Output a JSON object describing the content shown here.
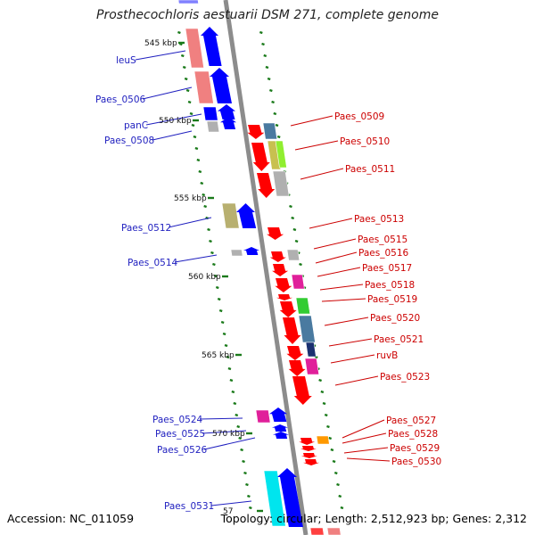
{
  "title": "Prosthecochloris aestuarii DSM 271, complete genome",
  "footer": {
    "accession": "Accession: NC_011059",
    "topology": "Topology: circular; Length: 2,512,923 bp; Genes: 2,312"
  },
  "ticks": [
    {
      "label": "545 kbp"
    },
    {
      "label": "550 kbp"
    },
    {
      "label": "555 kbp"
    },
    {
      "label": "560 kbp"
    },
    {
      "label": "565 kbp"
    },
    {
      "label": "570 kbp"
    },
    {
      "label": "57"
    }
  ],
  "left_genes": [
    {
      "name": "leuS"
    },
    {
      "name": "Paes_0506"
    },
    {
      "name": "panC"
    },
    {
      "name": "Paes_0508"
    },
    {
      "name": "Paes_0512"
    },
    {
      "name": "Paes_0514"
    },
    {
      "name": "Paes_0524"
    },
    {
      "name": "Paes_0525"
    },
    {
      "name": "Paes_0526"
    },
    {
      "name": "Paes_0531"
    }
  ],
  "right_genes": [
    {
      "name": "Paes_0509"
    },
    {
      "name": "Paes_0510"
    },
    {
      "name": "Paes_0511"
    },
    {
      "name": "Paes_0513"
    },
    {
      "name": "Paes_0515"
    },
    {
      "name": "Paes_0516"
    },
    {
      "name": "Paes_0517"
    },
    {
      "name": "Paes_0518"
    },
    {
      "name": "Paes_0519"
    },
    {
      "name": "Paes_0520"
    },
    {
      "name": "Paes_0521"
    },
    {
      "name": "ruvB"
    },
    {
      "name": "Paes_0523"
    },
    {
      "name": "Paes_0527"
    },
    {
      "name": "Paes_0528"
    },
    {
      "name": "Paes_0529"
    },
    {
      "name": "Paes_0530"
    }
  ],
  "colors": {
    "forward_label": "#1f1fbf",
    "reverse_label": "#cc0000",
    "forward_arrow": "#0000ff",
    "reverse_arrow": "#ff0000",
    "backbone": "#8c8c8c",
    "tick_dash": "#1a7a1a"
  }
}
